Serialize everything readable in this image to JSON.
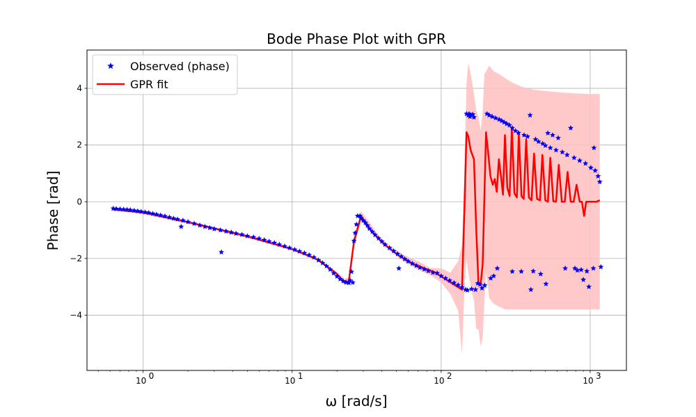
{
  "chart_data": {
    "type": "line",
    "title": "Bode Phase Plot with GPR",
    "xlabel": "ω [rad/s]",
    "ylabel": "Phase [rad]",
    "xscale": "log",
    "xlim": [
      0.42,
      1750
    ],
    "ylim": [
      -5.95,
      5.35
    ],
    "x_ticks": [
      1,
      10,
      100,
      1000
    ],
    "x_tick_labels": [
      "10",
      "10",
      "10",
      "10"
    ],
    "x_tick_exponents": [
      "0",
      "1",
      "2",
      "3"
    ],
    "y_ticks": [
      -4,
      -2,
      0,
      2,
      4
    ],
    "y_tick_labels": [
      "−4",
      "−2",
      "0",
      "2",
      "4"
    ],
    "grid": true,
    "legend_position": "top-left",
    "colors": {
      "observed": "#0000ff",
      "fit": "#ff0000",
      "band": "#ffc0c0"
    },
    "series": [
      {
        "name": "Observed (phase)",
        "kind": "scatter",
        "marker": "star",
        "points": [
          [
            0.63,
            -0.24
          ],
          [
            0.66,
            -0.25
          ],
          [
            0.7,
            -0.26
          ],
          [
            0.74,
            -0.27
          ],
          [
            0.78,
            -0.28
          ],
          [
            0.82,
            -0.29
          ],
          [
            0.87,
            -0.31
          ],
          [
            0.92,
            -0.33
          ],
          [
            0.97,
            -0.35
          ],
          [
            1.03,
            -0.37
          ],
          [
            1.09,
            -0.39
          ],
          [
            1.16,
            -0.42
          ],
          [
            1.23,
            -0.45
          ],
          [
            1.31,
            -0.48
          ],
          [
            1.4,
            -0.51
          ],
          [
            1.5,
            -0.55
          ],
          [
            1.6,
            -0.59
          ],
          [
            1.7,
            -0.62
          ],
          [
            1.8,
            -0.88
          ],
          [
            1.85,
            -0.66
          ],
          [
            2.0,
            -0.71
          ],
          [
            2.2,
            -0.77
          ],
          [
            2.4,
            -0.83
          ],
          [
            2.6,
            -0.88
          ],
          [
            2.8,
            -0.92
          ],
          [
            3.0,
            -0.96
          ],
          [
            3.3,
            -1.0
          ],
          [
            3.35,
            -1.78
          ],
          [
            3.6,
            -1.04
          ],
          [
            3.9,
            -1.08
          ],
          [
            4.2,
            -1.12
          ],
          [
            4.6,
            -1.16
          ],
          [
            5.0,
            -1.21
          ],
          [
            5.5,
            -1.25
          ],
          [
            6.0,
            -1.3
          ],
          [
            6.5,
            -1.35
          ],
          [
            7.0,
            -1.4
          ],
          [
            7.6,
            -1.45
          ],
          [
            8.2,
            -1.51
          ],
          [
            8.9,
            -1.57
          ],
          [
            9.6,
            -1.63
          ],
          [
            10.4,
            -1.69
          ],
          [
            11.2,
            -1.75
          ],
          [
            12.1,
            -1.81
          ],
          [
            13.0,
            -1.88
          ],
          [
            14.0,
            -1.96
          ],
          [
            15.0,
            -2.06
          ],
          [
            16.0,
            -2.16
          ],
          [
            17.0,
            -2.27
          ],
          [
            18.0,
            -2.39
          ],
          [
            19.0,
            -2.52
          ],
          [
            20.0,
            -2.63
          ],
          [
            21.0,
            -2.73
          ],
          [
            22.0,
            -2.8
          ],
          [
            23.0,
            -2.84
          ],
          [
            24.0,
            -2.86
          ],
          [
            24.5,
            -2.78
          ],
          [
            25.0,
            -2.47
          ],
          [
            25.5,
            -2.85
          ],
          [
            26.0,
            -1.38
          ],
          [
            26.5,
            -1.1
          ],
          [
            27.0,
            -0.8
          ],
          [
            27.5,
            -0.5
          ],
          [
            28.5,
            -0.5
          ],
          [
            29.0,
            -0.58
          ],
          [
            30.0,
            -0.66
          ],
          [
            31.0,
            -0.74
          ],
          [
            32.0,
            -0.84
          ],
          [
            33.0,
            -0.95
          ],
          [
            34.5,
            -1.06
          ],
          [
            36.0,
            -1.17
          ],
          [
            38.0,
            -1.29
          ],
          [
            40.0,
            -1.4
          ],
          [
            42.0,
            -1.51
          ],
          [
            45.0,
            -1.63
          ],
          [
            48.0,
            -1.74
          ],
          [
            51.0,
            -1.84
          ],
          [
            54.0,
            -1.93
          ],
          [
            52.0,
            -2.35
          ],
          [
            57.0,
            -2.02
          ],
          [
            60.0,
            -2.1
          ],
          [
            64.0,
            -2.18
          ],
          [
            68.0,
            -2.25
          ],
          [
            72.0,
            -2.32
          ],
          [
            77.0,
            -2.38
          ],
          [
            82.0,
            -2.44
          ],
          [
            88.0,
            -2.5
          ],
          [
            94.0,
            -2.52
          ],
          [
            100.0,
            -2.62
          ],
          [
            107.0,
            -2.7
          ],
          [
            114.0,
            -2.78
          ],
          [
            122.0,
            -2.86
          ],
          [
            130.0,
            -2.94
          ],
          [
            138.0,
            -3.02
          ],
          [
            146.0,
            -3.1
          ],
          [
            148.0,
            3.1
          ],
          [
            150.0,
            -3.12
          ],
          [
            152.0,
            3.05
          ],
          [
            154.0,
            3.1
          ],
          [
            156.0,
            3.0
          ],
          [
            158.0,
            3.06
          ],
          [
            160.0,
            -3.08
          ],
          [
            163.0,
            3.08
          ],
          [
            166.0,
            2.98
          ],
          [
            170.0,
            -3.1
          ],
          [
            176.0,
            -2.88
          ],
          [
            182.0,
            -2.92
          ],
          [
            188.0,
            -3.05
          ],
          [
            196.0,
            -2.95
          ],
          [
            203.0,
            3.1
          ],
          [
            210.0,
            3.05
          ],
          [
            215.0,
            -2.7
          ],
          [
            220.0,
            3.0
          ],
          [
            225.0,
            -2.62
          ],
          [
            232.0,
            2.95
          ],
          [
            238.0,
            -2.35
          ],
          [
            245.0,
            2.9
          ],
          [
            255.0,
            2.85
          ],
          [
            265.0,
            2.8
          ],
          [
            275.0,
            2.75
          ],
          [
            287.0,
            2.7
          ],
          [
            300.0,
            2.6
          ],
          [
            300.0,
            -2.46
          ],
          [
            315.0,
            2.5
          ],
          [
            330.0,
            2.43
          ],
          [
            345.0,
            -2.46
          ],
          [
            360.0,
            2.35
          ],
          [
            380.0,
            2.3
          ],
          [
            395.0,
            3.05
          ],
          [
            400.0,
            -3.1
          ],
          [
            415.0,
            -2.45
          ],
          [
            430.0,
            2.2
          ],
          [
            450.0,
            2.12
          ],
          [
            465.0,
            -2.55
          ],
          [
            480.0,
            2.05
          ],
          [
            500.0,
            1.98
          ],
          [
            505.0,
            -2.9
          ],
          [
            520.0,
            2.42
          ],
          [
            540.0,
            1.9
          ],
          [
            560.0,
            2.35
          ],
          [
            590.0,
            1.82
          ],
          [
            610.0,
            2.25
          ],
          [
            650.0,
            1.75
          ],
          [
            680.0,
            -2.35
          ],
          [
            700.0,
            1.65
          ],
          [
            740.0,
            2.6
          ],
          [
            780.0,
            1.55
          ],
          [
            790.0,
            -2.35
          ],
          [
            820.0,
            -2.42
          ],
          [
            850.0,
            1.45
          ],
          [
            870.0,
            -2.4
          ],
          [
            900.0,
            -2.75
          ],
          [
            930.0,
            1.35
          ],
          [
            950.0,
            -2.45
          ],
          [
            980.0,
            -3.0
          ],
          [
            1010.0,
            1.2
          ],
          [
            1050.0,
            -2.35
          ],
          [
            1060.0,
            1.9
          ],
          [
            1080.0,
            1.1
          ],
          [
            1130.0,
            0.9
          ],
          [
            1160.0,
            0.7
          ],
          [
            1180.0,
            -2.3
          ]
        ]
      },
      {
        "name": "GPR fit",
        "kind": "line",
        "points": [
          [
            0.63,
            -0.27
          ],
          [
            1.0,
            -0.38
          ],
          [
            2.0,
            -0.72
          ],
          [
            5.0,
            -1.22
          ],
          [
            10.0,
            -1.67
          ],
          [
            15.0,
            -2.05
          ],
          [
            20.0,
            -2.55
          ],
          [
            22.5,
            -2.85
          ],
          [
            24.0,
            -2.8
          ],
          [
            26.0,
            -1.4
          ],
          [
            29.0,
            -0.5
          ],
          [
            31.0,
            -0.75
          ],
          [
            35.0,
            -1.1
          ],
          [
            42.0,
            -1.52
          ],
          [
            52.0,
            -1.9
          ],
          [
            65.0,
            -2.2
          ],
          [
            90.0,
            -2.48
          ],
          [
            120.0,
            -2.9
          ],
          [
            138.0,
            -3.1
          ],
          [
            143.0,
            -0.4
          ],
          [
            148.0,
            2.45
          ],
          [
            152.0,
            2.3
          ],
          [
            158.0,
            1.8
          ],
          [
            166.0,
            1.5
          ],
          [
            172.0,
            -1.0
          ],
          [
            178.0,
            -2.9
          ],
          [
            184.0,
            -2.9
          ],
          [
            190.0,
            -2.2
          ],
          [
            195.0,
            0.2
          ],
          [
            200.0,
            2.45
          ],
          [
            206.0,
            1.8
          ],
          [
            214.0,
            0.9
          ],
          [
            222.0,
            0.6
          ],
          [
            229.0,
            0.8
          ],
          [
            236.0,
            0.35
          ],
          [
            244.0,
            1.5
          ],
          [
            252.0,
            0.9
          ],
          [
            260.0,
            0.25
          ],
          [
            268.0,
            2.35
          ],
          [
            278.0,
            0.5
          ],
          [
            288.0,
            0.2
          ],
          [
            298.0,
            2.6
          ],
          [
            310.0,
            0.3
          ],
          [
            322.0,
            0.15
          ],
          [
            332.0,
            2.4
          ],
          [
            346.0,
            0.2
          ],
          [
            358.0,
            0.1
          ],
          [
            372.0,
            2.2
          ],
          [
            388.0,
            0.15
          ],
          [
            404.0,
            0.05
          ],
          [
            420.0,
            1.7
          ],
          [
            440.0,
            0.1
          ],
          [
            460.0,
            0.05
          ],
          [
            478.0,
            1.65
          ],
          [
            500.0,
            0.05
          ],
          [
            520.0,
            0.0
          ],
          [
            540.0,
            1.55
          ],
          [
            565.0,
            0.02
          ],
          [
            590.0,
            0.0
          ],
          [
            615.0,
            1.3
          ],
          [
            645.0,
            0.0
          ],
          [
            675.0,
            0.0
          ],
          [
            705.0,
            1.05
          ],
          [
            740.0,
            0.0
          ],
          [
            775.0,
            0.0
          ],
          [
            810.0,
            0.6
          ],
          [
            850.0,
            0.0
          ],
          [
            880.0,
            0.0
          ],
          [
            910.0,
            -0.5
          ],
          [
            940.0,
            0.0
          ],
          [
            990.0,
            0.0
          ],
          [
            1050.0,
            0.0
          ],
          [
            1100.0,
            0.0
          ],
          [
            1160.0,
            0.05
          ]
        ]
      }
    ],
    "confidence_band": {
      "points": [
        [
          0.63,
          -0.32,
          -0.22
        ],
        [
          1.0,
          -0.43,
          -0.33
        ],
        [
          2.0,
          -0.77,
          -0.67
        ],
        [
          5.0,
          -1.27,
          -1.17
        ],
        [
          10.0,
          -1.72,
          -1.62
        ],
        [
          15.0,
          -2.1,
          -2.0
        ],
        [
          20.0,
          -2.62,
          -2.48
        ],
        [
          22.5,
          -2.95,
          -2.72
        ],
        [
          24.0,
          -2.92,
          -2.66
        ],
        [
          26.0,
          -1.6,
          -1.2
        ],
        [
          29.0,
          -0.68,
          -0.34
        ],
        [
          32.0,
          -0.92,
          -0.62
        ],
        [
          40.0,
          -1.52,
          -1.35
        ],
        [
          55.0,
          -2.08,
          -1.86
        ],
        [
          70.0,
          -2.4,
          -2.1
        ],
        [
          85.0,
          -2.6,
          -2.34
        ],
        [
          100.0,
          -2.85,
          -2.35
        ],
        [
          115.0,
          -3.25,
          -2.5
        ],
        [
          130.0,
          -3.85,
          -2.1
        ],
        [
          138.0,
          -5.4,
          -1.5
        ],
        [
          143.0,
          -3.2,
          1.0
        ],
        [
          148.0,
          -2.0,
          4.2
        ],
        [
          152.0,
          -2.5,
          4.9
        ],
        [
          158.0,
          -3.0,
          4.5
        ],
        [
          166.0,
          -3.5,
          3.8
        ],
        [
          172.0,
          -4.5,
          3.2
        ],
        [
          178.0,
          -4.5,
          3.0
        ],
        [
          184.0,
          -5.1,
          2.5
        ],
        [
          190.0,
          -4.8,
          3.2
        ],
        [
          195.0,
          -3.5,
          4.5
        ],
        [
          200.0,
          -2.5,
          4.6
        ],
        [
          210.0,
          -3.4,
          4.8
        ],
        [
          225.0,
          -3.6,
          4.6
        ],
        [
          245.0,
          -3.7,
          4.5
        ],
        [
          270.0,
          -3.8,
          4.35
        ],
        [
          300.0,
          -3.8,
          4.2
        ],
        [
          350.0,
          -3.8,
          4.05
        ],
        [
          420.0,
          -3.8,
          3.95
        ],
        [
          520.0,
          -3.8,
          3.9
        ],
        [
          650.0,
          -3.8,
          3.85
        ],
        [
          800.0,
          -3.8,
          3.82
        ],
        [
          1000.0,
          -3.8,
          3.8
        ],
        [
          1160.0,
          -3.8,
          3.8
        ]
      ]
    }
  }
}
